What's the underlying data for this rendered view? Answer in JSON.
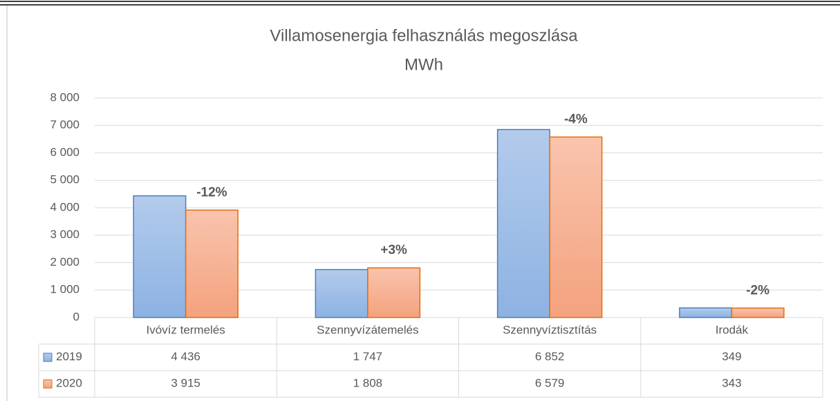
{
  "chart_data": {
    "type": "bar",
    "title": "Villamosenergia felhasználás megoszlása",
    "subtitle": "MWh",
    "categories": [
      "Ivóvíz termelés",
      "Szennyvízátemelés",
      "Szennyvíztisztítás",
      "Irodák"
    ],
    "series": [
      {
        "name": "2019",
        "color": "#9bbbe6",
        "values": [
          4436,
          1747,
          6852,
          349
        ],
        "value_labels": [
          "4 436",
          "1 747",
          "6 852",
          "349"
        ]
      },
      {
        "name": "2020",
        "color": "#f6ad8e",
        "values": [
          3915,
          1808,
          6579,
          343
        ],
        "value_labels": [
          "3 915",
          "1 808",
          "6 579",
          "343"
        ]
      }
    ],
    "annotations": [
      "-12%",
      "+3%",
      "-4%",
      "-2%"
    ],
    "ylim": [
      0,
      8000
    ],
    "yticks": [
      0,
      {
        "value": 1000,
        "label": "1 000"
      },
      {
        "value": 2000,
        "label": "2 000"
      },
      {
        "value": 3000,
        "label": "3 000"
      },
      {
        "value": 4000,
        "label": "4 000"
      },
      {
        "value": 5000,
        "label": "5 000"
      },
      {
        "value": 6000,
        "label": "6 000"
      },
      {
        "value": 7000,
        "label": "7 000"
      },
      {
        "value": 8000,
        "label": "8 000"
      }
    ],
    "grid": true,
    "data_table": true
  }
}
